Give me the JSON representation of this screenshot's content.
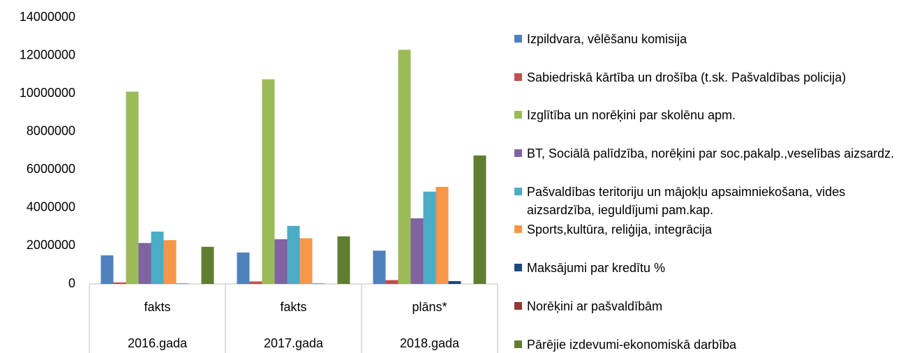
{
  "chart_data": {
    "type": "bar",
    "categories": [
      "fakts",
      "fakts",
      "plāns*"
    ],
    "category_groups": [
      "2016.gada",
      "2017.gada",
      "2018.gada"
    ],
    "ylim": [
      0,
      14000000
    ],
    "yticks": [
      0,
      2000000,
      4000000,
      6000000,
      8000000,
      10000000,
      12000000,
      14000000
    ],
    "grid": false,
    "legend": "right",
    "series": [
      {
        "name": "Izpildvara,  vēlēšanu komisija",
        "color": "#4f81bd",
        "values": [
          1500000,
          1650000,
          1750000
        ]
      },
      {
        "name": "Sabiedriskā kārtība un drošība (t.sk. Pašvaldības policija)",
        "color": "#c0504d",
        "values": [
          80000,
          130000,
          200000
        ]
      },
      {
        "name": "Izglītība un norēķini par skolēnu apm.",
        "color": "#9bbb59",
        "values": [
          10100000,
          10750000,
          12300000
        ]
      },
      {
        "name": "BT, Sociālā palīdzība, norēķini par soc.pakalp.,veselības aizsardz.",
        "color": "#8064a2",
        "values": [
          2150000,
          2350000,
          3450000
        ]
      },
      {
        "name": "Pašvaldības teritoriju un mājokļu apsaimniekošana, vides aizsardzība, ieguldījumi pam.kap.",
        "color": "#4bacc6",
        "values": [
          2750000,
          3050000,
          4850000
        ]
      },
      {
        "name": "Sports,kultūra, reliģija, integrācija",
        "color": "#f79646",
        "values": [
          2300000,
          2400000,
          5100000
        ]
      },
      {
        "name": "Maksājumi par kredītu %",
        "color": "#1f497d",
        "values": [
          20000,
          20000,
          150000
        ]
      },
      {
        "name": "Norēķini ar pašvaldībām",
        "color": "#953735",
        "values": [
          0,
          0,
          0
        ]
      },
      {
        "name": "Pārējie izdevumi-ekonomiskā darbība",
        "color": "#607d31",
        "values": [
          1950000,
          2500000,
          6750000
        ]
      }
    ]
  }
}
